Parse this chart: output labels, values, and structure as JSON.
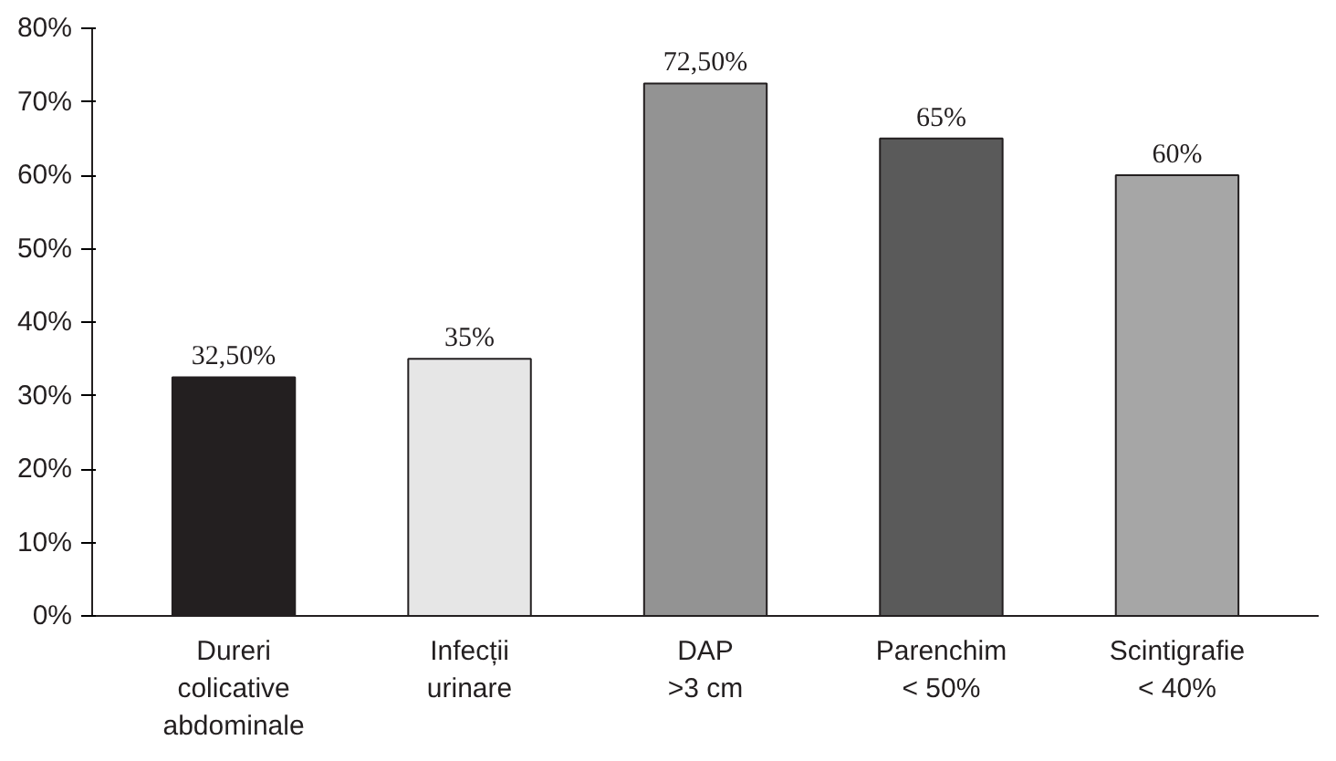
{
  "chart_data": {
    "type": "bar",
    "categories": [
      "Dureri\ncolicative\nabdominale",
      "Infecții\nurinare",
      "DAP\n>3 cm",
      "Parenchim\n< 50%",
      "Scintigrafie\n< 40%"
    ],
    "values": [
      32.5,
      35,
      72.5,
      65,
      60
    ],
    "value_labels": [
      "32,50%",
      "35%",
      "72,50%",
      "65%",
      "60%"
    ],
    "colors": [
      "#231f20",
      "#e6e6e6",
      "#939393",
      "#5a5a5a",
      "#a6a6a6"
    ],
    "ylim": [
      0,
      80
    ],
    "yticks": [
      {
        "value": 0,
        "label": "0%"
      },
      {
        "value": 10,
        "label": "10%"
      },
      {
        "value": 20,
        "label": "20%"
      },
      {
        "value": 30,
        "label": "30%"
      },
      {
        "value": 40,
        "label": "40%"
      },
      {
        "value": 50,
        "label": "50%"
      },
      {
        "value": 60,
        "label": "60%"
      },
      {
        "value": 70,
        "label": "70%"
      },
      {
        "value": 80,
        "label": "80%"
      }
    ],
    "grid": false
  }
}
